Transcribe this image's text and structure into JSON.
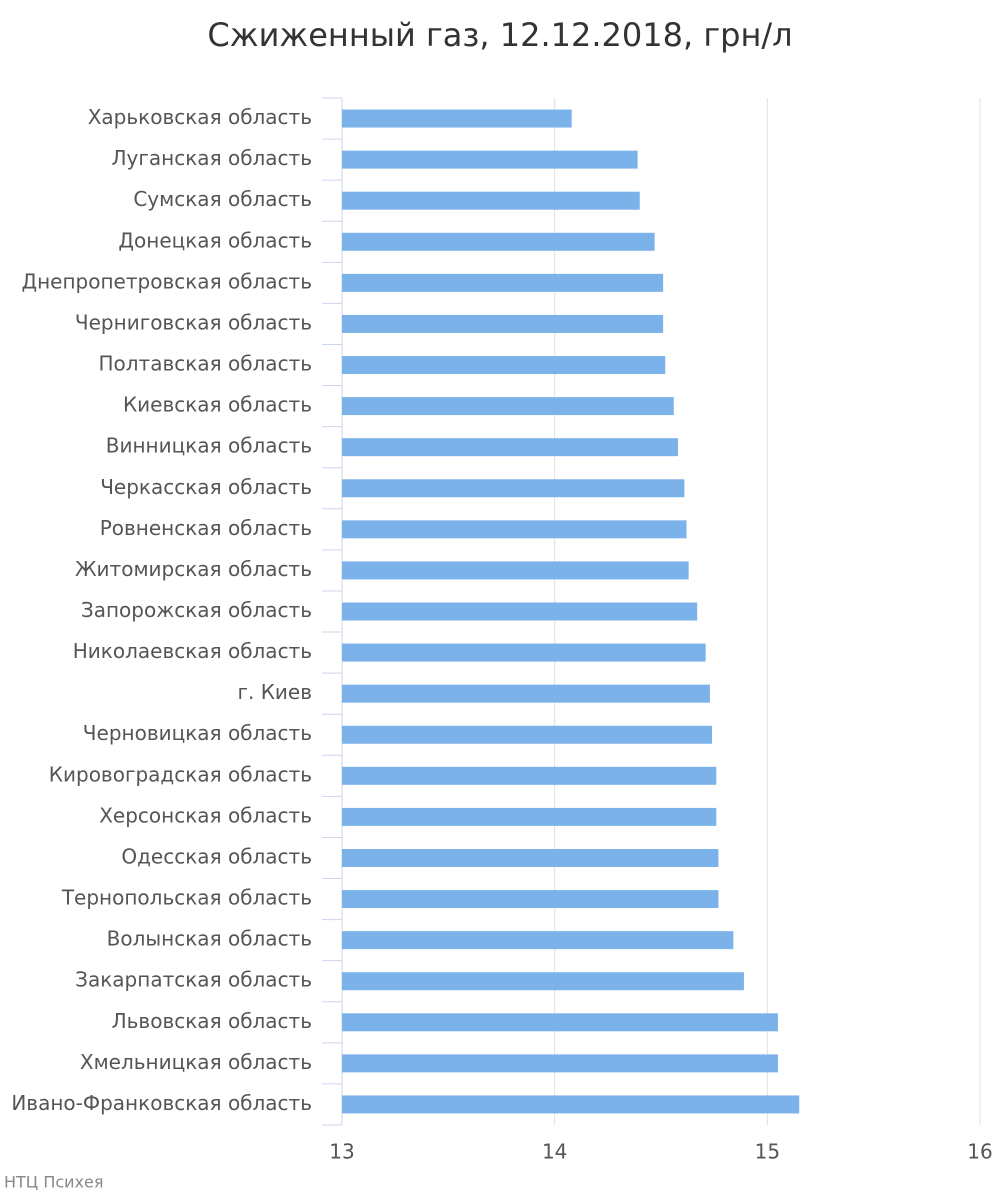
{
  "chart_data": {
    "type": "bar",
    "orientation": "horizontal",
    "title": "Сжиженный газ, 12.12.2018, грн/л",
    "categories": [
      "Харьковская область",
      "Луганская область",
      "Сумская область",
      "Донецкая область",
      "Днепропетровская область",
      "Черниговская область",
      "Полтавская область",
      "Киевская область",
      "Винницкая область",
      "Черкасская область",
      "Ровненская область",
      "Житомирская область",
      "Запорожская область",
      "Николаевская область",
      "г. Киев",
      "Черновицкая область",
      "Кировоградская область",
      "Херсонская область",
      "Одесская область",
      "Тернопольская область",
      "Волынская область",
      "Закарпатская область",
      "Львовская область",
      "Хмельницкая область",
      "Ивано-Франковская область"
    ],
    "values": [
      14.08,
      14.39,
      14.4,
      14.47,
      14.51,
      14.51,
      14.52,
      14.56,
      14.58,
      14.61,
      14.62,
      14.63,
      14.67,
      14.71,
      14.73,
      14.74,
      14.76,
      14.76,
      14.77,
      14.77,
      14.84,
      14.89,
      15.05,
      15.05,
      15.15
    ],
    "color": "#7cb2ea",
    "xlim": [
      13,
      16
    ],
    "xticks": [
      13,
      14,
      15,
      16
    ],
    "grid": true,
    "source": "НТЦ Психея"
  }
}
